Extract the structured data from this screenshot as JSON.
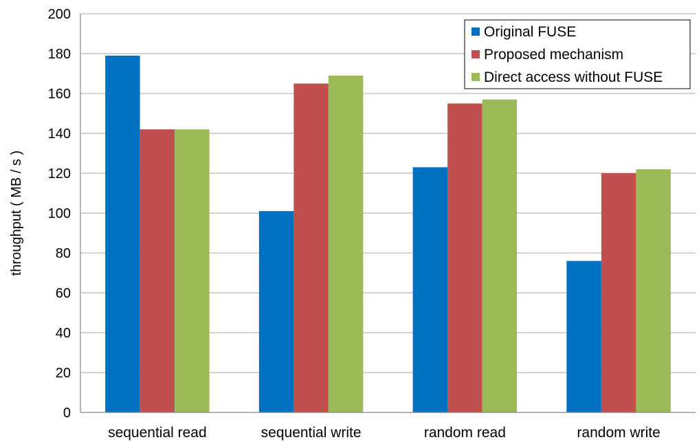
{
  "chart_data": {
    "type": "bar",
    "title": "",
    "xlabel": "",
    "ylabel": "throughput ( MB / s )",
    "ylim": [
      0,
      200
    ],
    "yticks": [
      0,
      20,
      40,
      60,
      80,
      100,
      120,
      140,
      160,
      180,
      200
    ],
    "grid": true,
    "legend_position": "top-right",
    "categories": [
      "sequential read",
      "sequential write",
      "random read",
      "random write"
    ],
    "series": [
      {
        "name": "Original FUSE",
        "color": "#0070C0",
        "values": [
          179,
          101,
          123,
          76
        ]
      },
      {
        "name": "Proposed mechanism",
        "color": "#C0504D",
        "values": [
          142,
          165,
          155,
          120
        ]
      },
      {
        "name": "Direct access without FUSE",
        "color": "#9BBB59",
        "values": [
          142,
          169,
          157,
          122
        ]
      }
    ]
  }
}
